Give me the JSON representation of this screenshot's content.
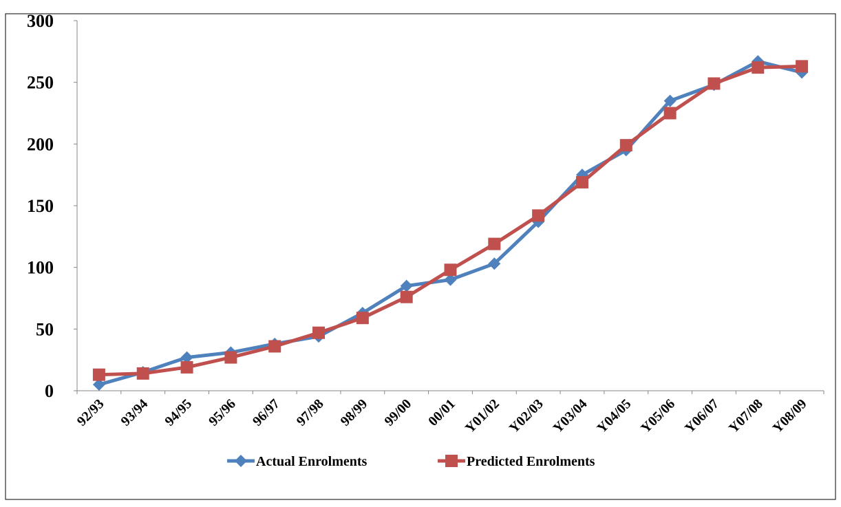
{
  "chart_data": {
    "type": "line",
    "categories": [
      "92/93",
      "93/94",
      "94/95",
      "95/96",
      "96/97",
      "97/98",
      "98/99",
      "99/00",
      "00/01",
      "Y01/02",
      "Y02/03",
      "Y03/04",
      "Y04/05",
      "Y05/06",
      "Y06/07",
      "Y07/08",
      "Y08/09"
    ],
    "series": [
      {
        "name": "Actual Enrolments",
        "color": "#4f81bd",
        "marker": "diamond",
        "values": [
          5,
          15,
          27,
          31,
          38,
          44,
          63,
          85,
          90,
          103,
          137,
          175,
          195,
          235,
          248,
          267,
          258
        ]
      },
      {
        "name": "Predicted Enrolments",
        "color": "#c0504d",
        "marker": "square",
        "values": [
          13,
          14,
          19,
          27,
          36,
          47,
          59,
          76,
          98,
          119,
          142,
          169,
          199,
          225,
          249,
          262,
          263
        ]
      }
    ],
    "ylim": [
      0,
      300
    ],
    "yticks": [
      0,
      50,
      100,
      150,
      200,
      250,
      300
    ],
    "grid": false,
    "legend": "bottom"
  }
}
